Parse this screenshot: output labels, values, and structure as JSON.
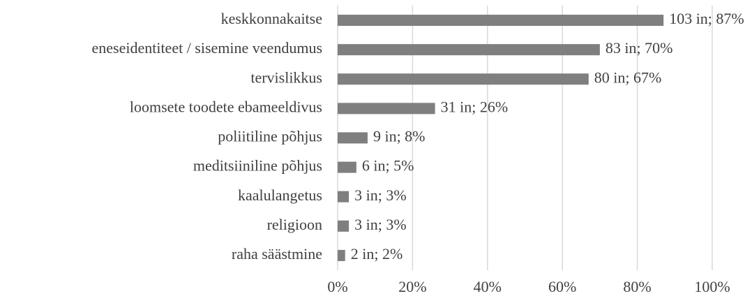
{
  "chart_data": {
    "type": "bar",
    "orientation": "horizontal",
    "categories": [
      "keskkonnakaitse",
      "eneseidentiteet / sisemine veendumus",
      "tervislikkus",
      "loomsete toodete ebameeldivus",
      "poliitiline põhjus",
      "meditsiiniline põhjus",
      "kaalulangetus",
      "religioon",
      "raha säästmine"
    ],
    "values": [
      87,
      70,
      67,
      26,
      8,
      5,
      3,
      3,
      2
    ],
    "value_labels": [
      "103 in; 87%",
      "83 in; 70%",
      "80 in; 67%",
      "31 in; 26%",
      "9 in; 8%",
      "6 in; 5%",
      "3 in; 3%",
      "3 in; 3%",
      "2 in; 2%"
    ],
    "color": "#7f7f7f",
    "xlim": [
      0,
      100
    ],
    "xticks": [
      {
        "value": 0,
        "label": "0%"
      },
      {
        "value": 20,
        "label": "20%"
      },
      {
        "value": 40,
        "label": "40%"
      },
      {
        "value": 60,
        "label": "60%"
      },
      {
        "value": 80,
        "label": "80%"
      },
      {
        "value": 100,
        "label": "100%"
      }
    ],
    "grid": true
  }
}
